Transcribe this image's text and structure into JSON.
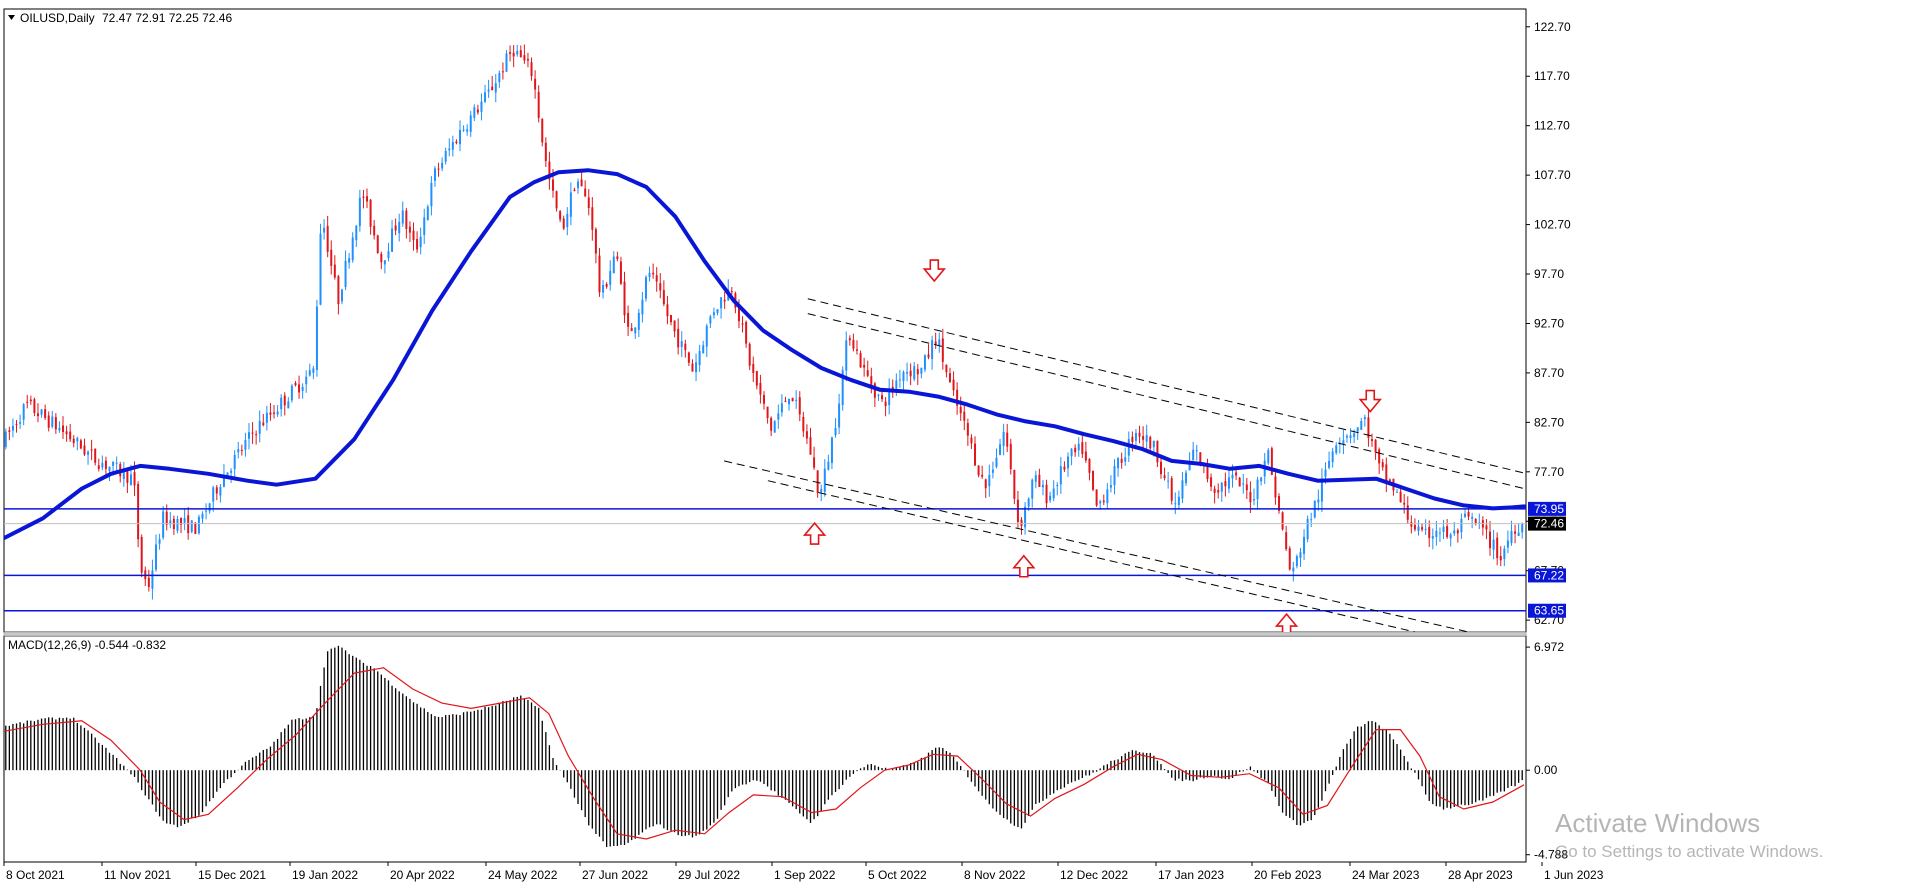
{
  "colors": {
    "background": "#ffffff",
    "grid_frame": "#000000",
    "bull_candle": "#1e90ff",
    "bear_candle": "#e0161b",
    "moving_average": "#0a16d6",
    "hline": "#0a16d6",
    "price_line": "#c0c0c0",
    "channel": "#000000",
    "arrow": "#e0161b",
    "macd_hist": "#000000",
    "macd_signal": "#e0161b"
  },
  "icons": {
    "title_marker": "triangle-down-icon",
    "arrow_up": "arrow-up-icon",
    "arrow_down": "arrow-down-icon"
  },
  "chart_data": [
    {
      "type": "candlestick",
      "symbol_label": "OILUSD,Daily",
      "ohlc_label": "72.47 72.91 72.25 72.46",
      "ylim": [
        61.5,
        124.5
      ],
      "y_ticks": [
        "122.70",
        "117.70",
        "112.70",
        "107.70",
        "102.70",
        "97.70",
        "92.70",
        "87.70",
        "82.70",
        "77.70",
        "72.70",
        "67.70",
        "62.70"
      ],
      "x_tick_labels": [
        "8 Oct 2021",
        "11 Nov 2021",
        "15 Dec 2021",
        "19 Jan 2022",
        "20 Apr 2022",
        "24 May 2022",
        "27 Jun 2022",
        "29 Jul 2022",
        "1 Sep 2022",
        "5 Oct 2022",
        "8 Nov 2022",
        "12 Dec 2022",
        "17 Jan 2023",
        "20 Feb 2023",
        "24 Mar 2023",
        "28 Apr 2023",
        "1 Jun 2023"
      ],
      "price_path": [
        [
          0,
          80.5
        ],
        [
          25,
          84.5
        ],
        [
          60,
          82.0
        ],
        [
          95,
          79.0
        ],
        [
          135,
          77.0
        ],
        [
          142,
          68.0
        ],
        [
          150,
          66.0
        ],
        [
          165,
          73.0
        ],
        [
          200,
          72.0
        ],
        [
          225,
          77.0
        ],
        [
          260,
          82.0
        ],
        [
          320,
          88.0
        ],
        [
          328,
          104.0
        ],
        [
          345,
          95.0
        ],
        [
          370,
          106.0
        ],
        [
          390,
          99.0
        ],
        [
          410,
          104.0
        ],
        [
          425,
          100.0
        ],
        [
          445,
          108.0
        ],
        [
          470,
          112.0
        ],
        [
          500,
          116.0
        ],
        [
          525,
          120.5
        ],
        [
          545,
          118.0
        ],
        [
          560,
          108.0
        ],
        [
          575,
          102.0
        ],
        [
          590,
          107.5
        ],
        [
          605,
          104.0
        ],
        [
          615,
          95.0
        ],
        [
          630,
          100.0
        ],
        [
          645,
          91.0
        ],
        [
          665,
          98.0
        ],
        [
          690,
          92.0
        ],
        [
          710,
          88.0
        ],
        [
          730,
          94.0
        ],
        [
          750,
          96.5
        ],
        [
          770,
          88.0
        ],
        [
          790,
          82.0
        ],
        [
          810,
          86.0
        ],
        [
          830,
          80.0
        ],
        [
          840,
          75.0
        ],
        [
          855,
          82.0
        ],
        [
          870,
          92.0
        ],
        [
          885,
          88.0
        ],
        [
          905,
          84.5
        ],
        [
          925,
          88.0
        ],
        [
          945,
          88.0
        ],
        [
          960,
          91.5
        ],
        [
          975,
          86.0
        ],
        [
          990,
          82.0
        ],
        [
          1010,
          76.0
        ],
        [
          1030,
          82.0
        ],
        [
          1045,
          72.0
        ],
        [
          1060,
          77.0
        ],
        [
          1075,
          75.0
        ],
        [
          1095,
          79.0
        ],
        [
          1110,
          80.0
        ],
        [
          1125,
          74.0
        ],
        [
          1145,
          78.0
        ],
        [
          1165,
          82.0
        ],
        [
          1185,
          80.0
        ],
        [
          1205,
          74.0
        ],
        [
          1225,
          80.0
        ],
        [
          1245,
          76.0
        ],
        [
          1265,
          77.0
        ],
        [
          1285,
          75.0
        ],
        [
          1300,
          80.0
        ],
        [
          1315,
          72.0
        ],
        [
          1325,
          67.0
        ],
        [
          1340,
          72.0
        ],
        [
          1355,
          76.0
        ],
        [
          1370,
          81.0
        ],
        [
          1390,
          82.0
        ],
        [
          1400,
          83.0
        ],
        [
          1415,
          78.0
        ],
        [
          1430,
          76.0
        ],
        [
          1445,
          73.0
        ],
        [
          1460,
          71.0
        ],
        [
          1475,
          72.0
        ],
        [
          1490,
          71.0
        ],
        [
          1505,
          73.0
        ],
        [
          1520,
          72.0
        ],
        [
          1540,
          69.0
        ],
        [
          1552,
          72.0
        ],
        [
          1562,
          72.46
        ]
      ],
      "moving_average": [
        [
          0,
          71.0
        ],
        [
          40,
          73.0
        ],
        [
          80,
          76.0
        ],
        [
          110,
          77.5
        ],
        [
          140,
          78.3
        ],
        [
          170,
          78.0
        ],
        [
          210,
          77.5
        ],
        [
          250,
          76.8
        ],
        [
          280,
          76.4
        ],
        [
          320,
          77.0
        ],
        [
          360,
          81.0
        ],
        [
          400,
          87.0
        ],
        [
          440,
          94.0
        ],
        [
          480,
          100.0
        ],
        [
          520,
          105.5
        ],
        [
          545,
          107.0
        ],
        [
          570,
          108.0
        ],
        [
          600,
          108.2
        ],
        [
          630,
          107.8
        ],
        [
          660,
          106.5
        ],
        [
          690,
          103.5
        ],
        [
          720,
          99.0
        ],
        [
          750,
          95.0
        ],
        [
          780,
          92.0
        ],
        [
          810,
          90.0
        ],
        [
          840,
          88.2
        ],
        [
          870,
          87.0
        ],
        [
          900,
          86.0
        ],
        [
          930,
          85.8
        ],
        [
          960,
          85.3
        ],
        [
          990,
          84.5
        ],
        [
          1020,
          83.5
        ],
        [
          1050,
          82.8
        ],
        [
          1080,
          82.3
        ],
        [
          1110,
          81.5
        ],
        [
          1140,
          80.8
        ],
        [
          1170,
          80.0
        ],
        [
          1200,
          78.8
        ],
        [
          1230,
          78.5
        ],
        [
          1260,
          78.0
        ],
        [
          1290,
          78.3
        ],
        [
          1320,
          77.5
        ],
        [
          1350,
          76.8
        ],
        [
          1380,
          76.9
        ],
        [
          1410,
          77.0
        ],
        [
          1440,
          76.0
        ],
        [
          1470,
          75.0
        ],
        [
          1500,
          74.3
        ],
        [
          1530,
          74.0
        ],
        [
          1550,
          74.1
        ],
        [
          1562,
          74.2
        ]
      ],
      "horizontal_lines": [
        {
          "price": 73.95,
          "label": "73.95"
        },
        {
          "price": 67.22,
          "label": "67.22"
        },
        {
          "price": 63.65,
          "label": "63.65"
        }
      ],
      "current_price": {
        "price": 72.46,
        "label": "72.46"
      },
      "channel_lines": [
        {
          "x1": 826,
          "y1": 95.2,
          "x2": 1870,
          "y2": 70.2
        },
        {
          "x1": 826,
          "y1": 93.7,
          "x2": 1870,
          "y2": 68.6
        },
        {
          "x1": 740,
          "y1": 78.8,
          "x2": 1505,
          "y2": 61.5
        },
        {
          "x1": 785,
          "y1": 76.8,
          "x2": 1450,
          "y2": 61.5
        }
      ],
      "arrows": [
        {
          "x": 956,
          "price": 98.0,
          "direction": "down"
        },
        {
          "x": 1404,
          "price": 84.8,
          "direction": "down"
        },
        {
          "x": 833,
          "price": 71.5,
          "direction": "up"
        },
        {
          "x": 1048,
          "price": 68.2,
          "direction": "up"
        },
        {
          "x": 1318,
          "price": 62.3,
          "direction": "up"
        }
      ]
    },
    {
      "type": "macd",
      "label": "MACD(12,26,9) -0.544 -0.832",
      "ylim": [
        -5.2,
        7.6
      ],
      "y_ticks": [
        "6.972",
        "0.00",
        "-4.788"
      ],
      "histogram_path": [
        [
          0,
          2.5
        ],
        [
          40,
          2.9
        ],
        [
          70,
          3.0
        ],
        [
          90,
          2.0
        ],
        [
          120,
          0.4
        ],
        [
          135,
          -0.5
        ],
        [
          150,
          -1.8
        ],
        [
          165,
          -3.0
        ],
        [
          180,
          -3.2
        ],
        [
          200,
          -2.6
        ],
        [
          225,
          -0.8
        ],
        [
          245,
          0.3
        ],
        [
          275,
          1.4
        ],
        [
          295,
          2.8
        ],
        [
          320,
          3.1
        ],
        [
          332,
          6.8
        ],
        [
          345,
          7.0
        ],
        [
          365,
          6.2
        ],
        [
          380,
          5.8
        ],
        [
          400,
          4.8
        ],
        [
          425,
          3.7
        ],
        [
          445,
          3.0
        ],
        [
          470,
          3.2
        ],
        [
          500,
          3.6
        ],
        [
          530,
          4.2
        ],
        [
          550,
          3.5
        ],
        [
          565,
          0.5
        ],
        [
          580,
          -0.8
        ],
        [
          600,
          -3.0
        ],
        [
          620,
          -4.4
        ],
        [
          640,
          -4.2
        ],
        [
          670,
          -3.0
        ],
        [
          690,
          -3.6
        ],
        [
          710,
          -3.8
        ],
        [
          730,
          -3.0
        ],
        [
          750,
          -1.0
        ],
        [
          775,
          -0.5
        ],
        [
          800,
          -1.6
        ],
        [
          830,
          -3.0
        ],
        [
          850,
          -1.5
        ],
        [
          870,
          -0.3
        ],
        [
          890,
          0.4
        ],
        [
          910,
          0.0
        ],
        [
          930,
          0.3
        ],
        [
          945,
          0.7
        ],
        [
          960,
          1.4
        ],
        [
          975,
          0.8
        ],
        [
          990,
          -0.3
        ],
        [
          1010,
          -1.8
        ],
        [
          1030,
          -2.8
        ],
        [
          1045,
          -3.3
        ],
        [
          1060,
          -2.0
        ],
        [
          1080,
          -1.2
        ],
        [
          1100,
          -0.6
        ],
        [
          1115,
          -0.3
        ],
        [
          1135,
          0.4
        ],
        [
          1160,
          1.1
        ],
        [
          1180,
          1.0
        ],
        [
          1200,
          -0.5
        ],
        [
          1220,
          -0.6
        ],
        [
          1240,
          -0.3
        ],
        [
          1260,
          -0.5
        ],
        [
          1280,
          0.2
        ],
        [
          1300,
          -0.8
        ],
        [
          1315,
          -2.5
        ],
        [
          1330,
          -3.1
        ],
        [
          1345,
          -2.8
        ],
        [
          1360,
          -1.0
        ],
        [
          1375,
          1.0
        ],
        [
          1390,
          2.4
        ],
        [
          1405,
          2.8
        ],
        [
          1420,
          2.3
        ],
        [
          1435,
          1.2
        ],
        [
          1450,
          -0.2
        ],
        [
          1465,
          -1.8
        ],
        [
          1480,
          -2.2
        ],
        [
          1495,
          -2.0
        ],
        [
          1510,
          -1.9
        ],
        [
          1525,
          -1.6
        ],
        [
          1540,
          -1.2
        ],
        [
          1555,
          -0.8
        ],
        [
          1562,
          -0.54
        ]
      ],
      "signal_path": [
        [
          0,
          2.2
        ],
        [
          40,
          2.6
        ],
        [
          80,
          2.8
        ],
        [
          110,
          1.7
        ],
        [
          140,
          0.0
        ],
        [
          160,
          -1.8
        ],
        [
          185,
          -2.8
        ],
        [
          210,
          -2.5
        ],
        [
          240,
          -1.0
        ],
        [
          270,
          0.6
        ],
        [
          300,
          2.0
        ],
        [
          330,
          3.8
        ],
        [
          360,
          5.5
        ],
        [
          390,
          5.8
        ],
        [
          420,
          4.6
        ],
        [
          450,
          3.8
        ],
        [
          480,
          3.5
        ],
        [
          510,
          3.8
        ],
        [
          540,
          4.1
        ],
        [
          560,
          3.2
        ],
        [
          580,
          0.8
        ],
        [
          605,
          -1.5
        ],
        [
          630,
          -3.6
        ],
        [
          660,
          -3.9
        ],
        [
          690,
          -3.4
        ],
        [
          720,
          -3.6
        ],
        [
          745,
          -2.4
        ],
        [
          770,
          -1.4
        ],
        [
          800,
          -1.5
        ],
        [
          830,
          -2.4
        ],
        [
          855,
          -2.2
        ],
        [
          880,
          -1.0
        ],
        [
          905,
          0.0
        ],
        [
          930,
          0.3
        ],
        [
          955,
          0.9
        ],
        [
          980,
          0.8
        ],
        [
          1005,
          -0.5
        ],
        [
          1030,
          -1.9
        ],
        [
          1055,
          -2.6
        ],
        [
          1080,
          -1.6
        ],
        [
          1110,
          -0.8
        ],
        [
          1140,
          0.2
        ],
        [
          1165,
          0.9
        ],
        [
          1190,
          0.6
        ],
        [
          1220,
          -0.3
        ],
        [
          1250,
          -0.4
        ],
        [
          1280,
          -0.2
        ],
        [
          1310,
          -1.0
        ],
        [
          1335,
          -2.5
        ],
        [
          1360,
          -2.0
        ],
        [
          1385,
          0.2
        ],
        [
          1410,
          2.3
        ],
        [
          1435,
          2.3
        ],
        [
          1455,
          0.8
        ],
        [
          1475,
          -1.5
        ],
        [
          1500,
          -2.2
        ],
        [
          1530,
          -1.8
        ],
        [
          1562,
          -0.83
        ]
      ]
    }
  ],
  "watermark": {
    "title": "Activate Windows",
    "subtitle": "Go to Settings to activate Windows."
  }
}
